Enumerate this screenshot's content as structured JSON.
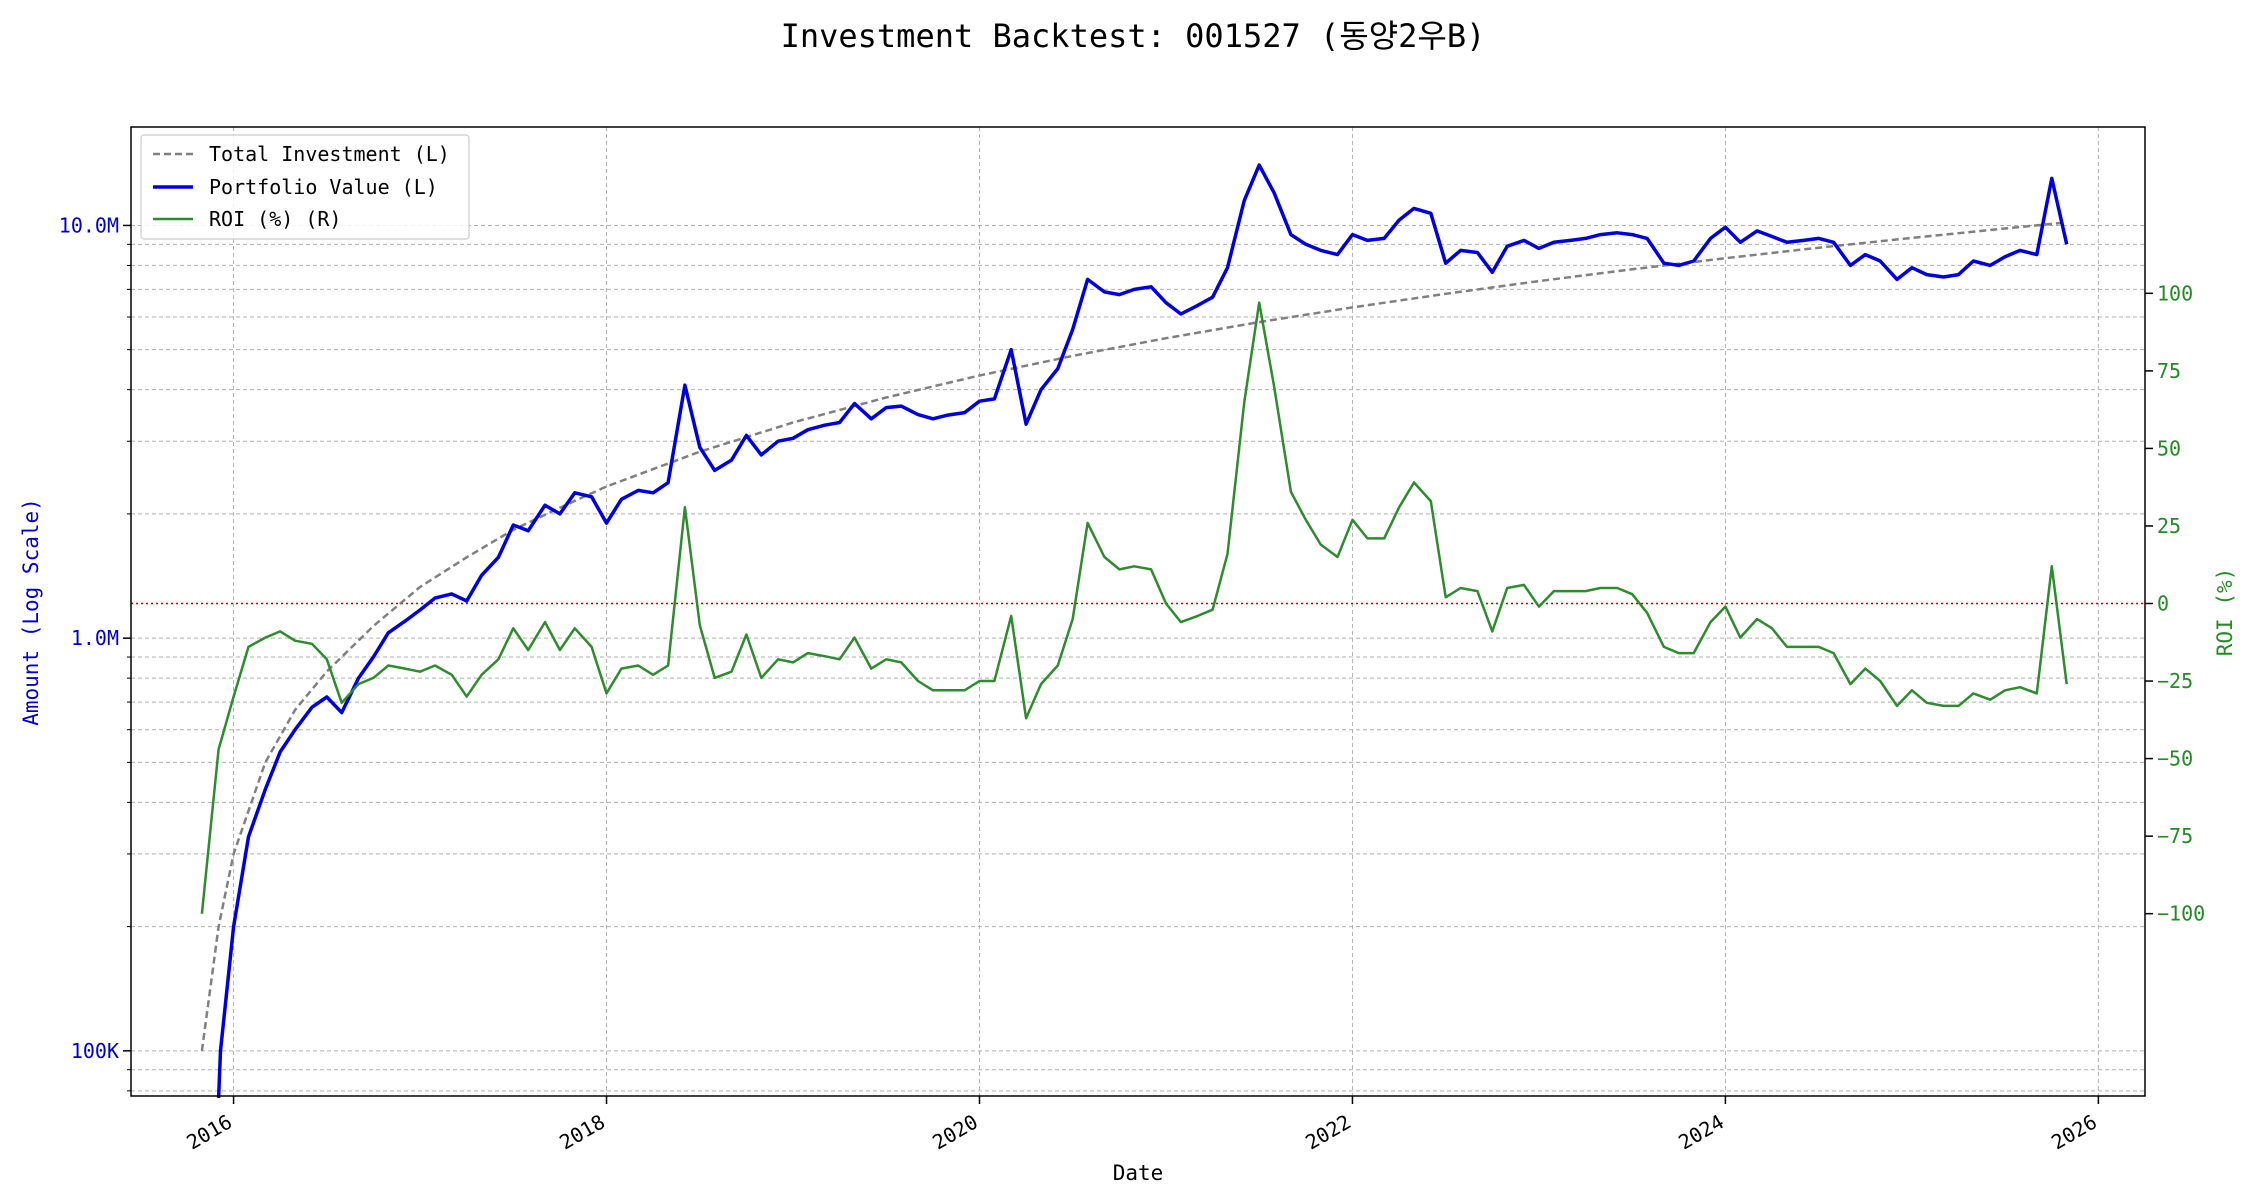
{
  "chart_data": {
    "type": "line",
    "title": "Investment Backtest: 001527 (동양2우B)",
    "xlabel": "Date",
    "ylabel_left": "Amount (Log Scale)",
    "ylabel_right": "ROI (%)",
    "left_scale": "log",
    "left_ylim": [
      80000,
      18000000
    ],
    "right_ylim": [
      -110,
      107
    ],
    "xlim": [
      2015.45,
      2026.25
    ],
    "grid": true,
    "legend_position": "top-left",
    "x_ticks": [
      {
        "value": 2016,
        "label": "2016"
      },
      {
        "value": 2018,
        "label": "2018"
      },
      {
        "value": 2020,
        "label": "2020"
      },
      {
        "value": 2022,
        "label": "2022"
      },
      {
        "value": 2024,
        "label": "2024"
      },
      {
        "value": 2026,
        "label": "2026"
      }
    ],
    "left_ticks": [
      {
        "value": 100000,
        "label": "100K"
      },
      {
        "value": 1000000,
        "label": "1.0M"
      },
      {
        "value": 10000000,
        "label": "10.0M"
      }
    ],
    "right_ticks": [
      {
        "value": -100,
        "label": "−100"
      },
      {
        "value": -75,
        "label": "−75"
      },
      {
        "value": -50,
        "label": "−50"
      },
      {
        "value": -25,
        "label": "−25"
      },
      {
        "value": 0,
        "label": "0"
      },
      {
        "value": 25,
        "label": "25"
      },
      {
        "value": 50,
        "label": "50"
      },
      {
        "value": 75,
        "label": "75"
      },
      {
        "value": 100,
        "label": "100"
      }
    ],
    "zero_line": {
      "value": 0,
      "color": "#d00000"
    },
    "colors": {
      "investment": "#808080",
      "portfolio": "#0000dd",
      "roi": "#2e8b2e",
      "left_axis": "#0000cc",
      "right_axis": "#228b22"
    },
    "series": [
      {
        "name": "Total Investment (L)",
        "axis": "left",
        "style": "dashed",
        "points": [
          [
            2015.83,
            100000
          ],
          [
            2015.92,
            200000
          ],
          [
            2016.0,
            300000
          ],
          [
            2016.17,
            500000
          ],
          [
            2016.33,
            670000
          ],
          [
            2016.5,
            830000
          ],
          [
            2016.75,
            1070000
          ],
          [
            2017.0,
            1330000
          ],
          [
            2017.25,
            1570000
          ],
          [
            2017.5,
            1830000
          ],
          [
            2017.75,
            2070000
          ],
          [
            2018.0,
            2330000
          ],
          [
            2018.5,
            2830000
          ],
          [
            2019.0,
            3330000
          ],
          [
            2019.5,
            3830000
          ],
          [
            2020.0,
            4330000
          ],
          [
            2020.5,
            4830000
          ],
          [
            2021.0,
            5330000
          ],
          [
            2021.5,
            5830000
          ],
          [
            2022.0,
            6330000
          ],
          [
            2022.5,
            6830000
          ],
          [
            2023.0,
            7330000
          ],
          [
            2023.5,
            7830000
          ],
          [
            2024.0,
            8330000
          ],
          [
            2024.5,
            8830000
          ],
          [
            2025.0,
            9330000
          ],
          [
            2025.5,
            9830000
          ],
          [
            2025.83,
            10170000
          ]
        ]
      },
      {
        "name": "Portfolio Value (L)",
        "axis": "left",
        "style": "solid",
        "points": [
          [
            2015.92,
            50000
          ],
          [
            2015.93,
            100000
          ],
          [
            2016.0,
            200000
          ],
          [
            2016.08,
            330000
          ],
          [
            2016.17,
            430000
          ],
          [
            2016.25,
            530000
          ],
          [
            2016.33,
            600000
          ],
          [
            2016.42,
            680000
          ],
          [
            2016.5,
            720000
          ],
          [
            2016.58,
            660000
          ],
          [
            2016.67,
            800000
          ],
          [
            2016.75,
            900000
          ],
          [
            2016.83,
            1030000
          ],
          [
            2016.92,
            1100000
          ],
          [
            2017.0,
            1170000
          ],
          [
            2017.08,
            1250000
          ],
          [
            2017.17,
            1280000
          ],
          [
            2017.25,
            1230000
          ],
          [
            2017.33,
            1420000
          ],
          [
            2017.42,
            1570000
          ],
          [
            2017.5,
            1880000
          ],
          [
            2017.58,
            1820000
          ],
          [
            2017.67,
            2100000
          ],
          [
            2017.75,
            2000000
          ],
          [
            2017.83,
            2250000
          ],
          [
            2017.92,
            2200000
          ],
          [
            2018.0,
            1900000
          ],
          [
            2018.08,
            2170000
          ],
          [
            2018.17,
            2280000
          ],
          [
            2018.25,
            2250000
          ],
          [
            2018.33,
            2380000
          ],
          [
            2018.42,
            4100000
          ],
          [
            2018.5,
            2900000
          ],
          [
            2018.58,
            2550000
          ],
          [
            2018.67,
            2700000
          ],
          [
            2018.75,
            3100000
          ],
          [
            2018.83,
            2780000
          ],
          [
            2018.92,
            3000000
          ],
          [
            2019.0,
            3050000
          ],
          [
            2019.08,
            3200000
          ],
          [
            2019.17,
            3280000
          ],
          [
            2019.25,
            3330000
          ],
          [
            2019.33,
            3700000
          ],
          [
            2019.42,
            3400000
          ],
          [
            2019.5,
            3620000
          ],
          [
            2019.58,
            3650000
          ],
          [
            2019.67,
            3480000
          ],
          [
            2019.75,
            3400000
          ],
          [
            2019.83,
            3470000
          ],
          [
            2019.92,
            3520000
          ],
          [
            2020.0,
            3750000
          ],
          [
            2020.08,
            3800000
          ],
          [
            2020.17,
            5000000
          ],
          [
            2020.25,
            3300000
          ],
          [
            2020.33,
            4000000
          ],
          [
            2020.42,
            4500000
          ],
          [
            2020.5,
            5600000
          ],
          [
            2020.58,
            7400000
          ],
          [
            2020.67,
            6900000
          ],
          [
            2020.75,
            6800000
          ],
          [
            2020.83,
            7000000
          ],
          [
            2020.92,
            7100000
          ],
          [
            2021.0,
            6500000
          ],
          [
            2021.08,
            6100000
          ],
          [
            2021.17,
            6400000
          ],
          [
            2021.25,
            6700000
          ],
          [
            2021.33,
            7900000
          ],
          [
            2021.42,
            11500000
          ],
          [
            2021.5,
            14000000
          ],
          [
            2021.58,
            12000000
          ],
          [
            2021.67,
            9500000
          ],
          [
            2021.75,
            9000000
          ],
          [
            2021.83,
            8700000
          ],
          [
            2021.92,
            8500000
          ],
          [
            2022.0,
            9500000
          ],
          [
            2022.08,
            9200000
          ],
          [
            2022.17,
            9300000
          ],
          [
            2022.25,
            10300000
          ],
          [
            2022.33,
            11000000
          ],
          [
            2022.42,
            10700000
          ],
          [
            2022.5,
            8100000
          ],
          [
            2022.58,
            8700000
          ],
          [
            2022.67,
            8600000
          ],
          [
            2022.75,
            7700000
          ],
          [
            2022.83,
            8900000
          ],
          [
            2022.92,
            9200000
          ],
          [
            2023.0,
            8800000
          ],
          [
            2023.08,
            9100000
          ],
          [
            2023.17,
            9200000
          ],
          [
            2023.25,
            9300000
          ],
          [
            2023.33,
            9500000
          ],
          [
            2023.42,
            9600000
          ],
          [
            2023.5,
            9500000
          ],
          [
            2023.58,
            9300000
          ],
          [
            2023.67,
            8100000
          ],
          [
            2023.75,
            8000000
          ],
          [
            2023.83,
            8200000
          ],
          [
            2023.92,
            9300000
          ],
          [
            2024.0,
            9900000
          ],
          [
            2024.08,
            9100000
          ],
          [
            2024.17,
            9700000
          ],
          [
            2024.25,
            9400000
          ],
          [
            2024.33,
            9100000
          ],
          [
            2024.42,
            9200000
          ],
          [
            2024.5,
            9300000
          ],
          [
            2024.58,
            9100000
          ],
          [
            2024.67,
            8000000
          ],
          [
            2024.75,
            8500000
          ],
          [
            2024.83,
            8200000
          ],
          [
            2024.92,
            7400000
          ],
          [
            2025.0,
            7900000
          ],
          [
            2025.08,
            7600000
          ],
          [
            2025.17,
            7500000
          ],
          [
            2025.25,
            7600000
          ],
          [
            2025.33,
            8200000
          ],
          [
            2025.42,
            8000000
          ],
          [
            2025.5,
            8400000
          ],
          [
            2025.58,
            8700000
          ],
          [
            2025.67,
            8500000
          ],
          [
            2025.75,
            13000000
          ],
          [
            2025.83,
            9000000
          ]
        ]
      },
      {
        "name": "ROI (%) (R)",
        "axis": "right",
        "style": "solid",
        "points": [
          [
            2015.83,
            -100
          ],
          [
            2015.92,
            -47
          ],
          [
            2016.0,
            -30
          ],
          [
            2016.08,
            -14
          ],
          [
            2016.17,
            -11
          ],
          [
            2016.25,
            -9
          ],
          [
            2016.33,
            -12
          ],
          [
            2016.42,
            -13
          ],
          [
            2016.5,
            -18
          ],
          [
            2016.58,
            -32
          ],
          [
            2016.67,
            -26
          ],
          [
            2016.75,
            -24
          ],
          [
            2016.83,
            -20
          ],
          [
            2016.92,
            -21
          ],
          [
            2017.0,
            -22
          ],
          [
            2017.08,
            -20
          ],
          [
            2017.17,
            -23
          ],
          [
            2017.25,
            -30
          ],
          [
            2017.33,
            -23
          ],
          [
            2017.42,
            -18
          ],
          [
            2017.5,
            -8
          ],
          [
            2017.58,
            -15
          ],
          [
            2017.67,
            -6
          ],
          [
            2017.75,
            -15
          ],
          [
            2017.83,
            -8
          ],
          [
            2017.92,
            -14
          ],
          [
            2018.0,
            -29
          ],
          [
            2018.08,
            -21
          ],
          [
            2018.17,
            -20
          ],
          [
            2018.25,
            -23
          ],
          [
            2018.33,
            -20
          ],
          [
            2018.42,
            31
          ],
          [
            2018.5,
            -7
          ],
          [
            2018.58,
            -24
          ],
          [
            2018.67,
            -22
          ],
          [
            2018.75,
            -10
          ],
          [
            2018.83,
            -24
          ],
          [
            2018.92,
            -18
          ],
          [
            2019.0,
            -19
          ],
          [
            2019.08,
            -16
          ],
          [
            2019.17,
            -17
          ],
          [
            2019.25,
            -18
          ],
          [
            2019.33,
            -11
          ],
          [
            2019.42,
            -21
          ],
          [
            2019.5,
            -18
          ],
          [
            2019.58,
            -19
          ],
          [
            2019.67,
            -25
          ],
          [
            2019.75,
            -28
          ],
          [
            2019.83,
            -28
          ],
          [
            2019.92,
            -28
          ],
          [
            2020.0,
            -25
          ],
          [
            2020.08,
            -25
          ],
          [
            2020.17,
            -4
          ],
          [
            2020.25,
            -37
          ],
          [
            2020.33,
            -26
          ],
          [
            2020.42,
            -20
          ],
          [
            2020.5,
            -5
          ],
          [
            2020.58,
            26
          ],
          [
            2020.67,
            15
          ],
          [
            2020.75,
            11
          ],
          [
            2020.83,
            12
          ],
          [
            2020.92,
            11
          ],
          [
            2021.0,
            0
          ],
          [
            2021.08,
            -6
          ],
          [
            2021.17,
            -4
          ],
          [
            2021.25,
            -2
          ],
          [
            2021.33,
            16
          ],
          [
            2021.42,
            65
          ],
          [
            2021.5,
            97
          ],
          [
            2021.58,
            70
          ],
          [
            2021.67,
            36
          ],
          [
            2021.75,
            27
          ],
          [
            2021.83,
            19
          ],
          [
            2021.92,
            15
          ],
          [
            2022.0,
            27
          ],
          [
            2022.08,
            21
          ],
          [
            2022.17,
            21
          ],
          [
            2022.25,
            31
          ],
          [
            2022.33,
            39
          ],
          [
            2022.42,
            33
          ],
          [
            2022.5,
            2
          ],
          [
            2022.58,
            5
          ],
          [
            2022.67,
            4
          ],
          [
            2022.75,
            -9
          ],
          [
            2022.83,
            5
          ],
          [
            2022.92,
            6
          ],
          [
            2023.0,
            -1
          ],
          [
            2023.08,
            4
          ],
          [
            2023.17,
            4
          ],
          [
            2023.25,
            4
          ],
          [
            2023.33,
            5
          ],
          [
            2023.42,
            5
          ],
          [
            2023.5,
            3
          ],
          [
            2023.58,
            -3
          ],
          [
            2023.67,
            -14
          ],
          [
            2023.75,
            -16
          ],
          [
            2023.83,
            -16
          ],
          [
            2023.92,
            -6
          ],
          [
            2024.0,
            -1
          ],
          [
            2024.08,
            -11
          ],
          [
            2024.17,
            -5
          ],
          [
            2024.25,
            -8
          ],
          [
            2024.33,
            -14
          ],
          [
            2024.42,
            -14
          ],
          [
            2024.5,
            -14
          ],
          [
            2024.58,
            -16
          ],
          [
            2024.67,
            -26
          ],
          [
            2024.75,
            -21
          ],
          [
            2024.83,
            -25
          ],
          [
            2024.92,
            -33
          ],
          [
            2025.0,
            -28
          ],
          [
            2025.08,
            -32
          ],
          [
            2025.17,
            -33
          ],
          [
            2025.25,
            -33
          ],
          [
            2025.33,
            -29
          ],
          [
            2025.42,
            -31
          ],
          [
            2025.5,
            -28
          ],
          [
            2025.58,
            -27
          ],
          [
            2025.67,
            -29
          ],
          [
            2025.75,
            12
          ],
          [
            2025.83,
            -26
          ]
        ]
      }
    ]
  }
}
